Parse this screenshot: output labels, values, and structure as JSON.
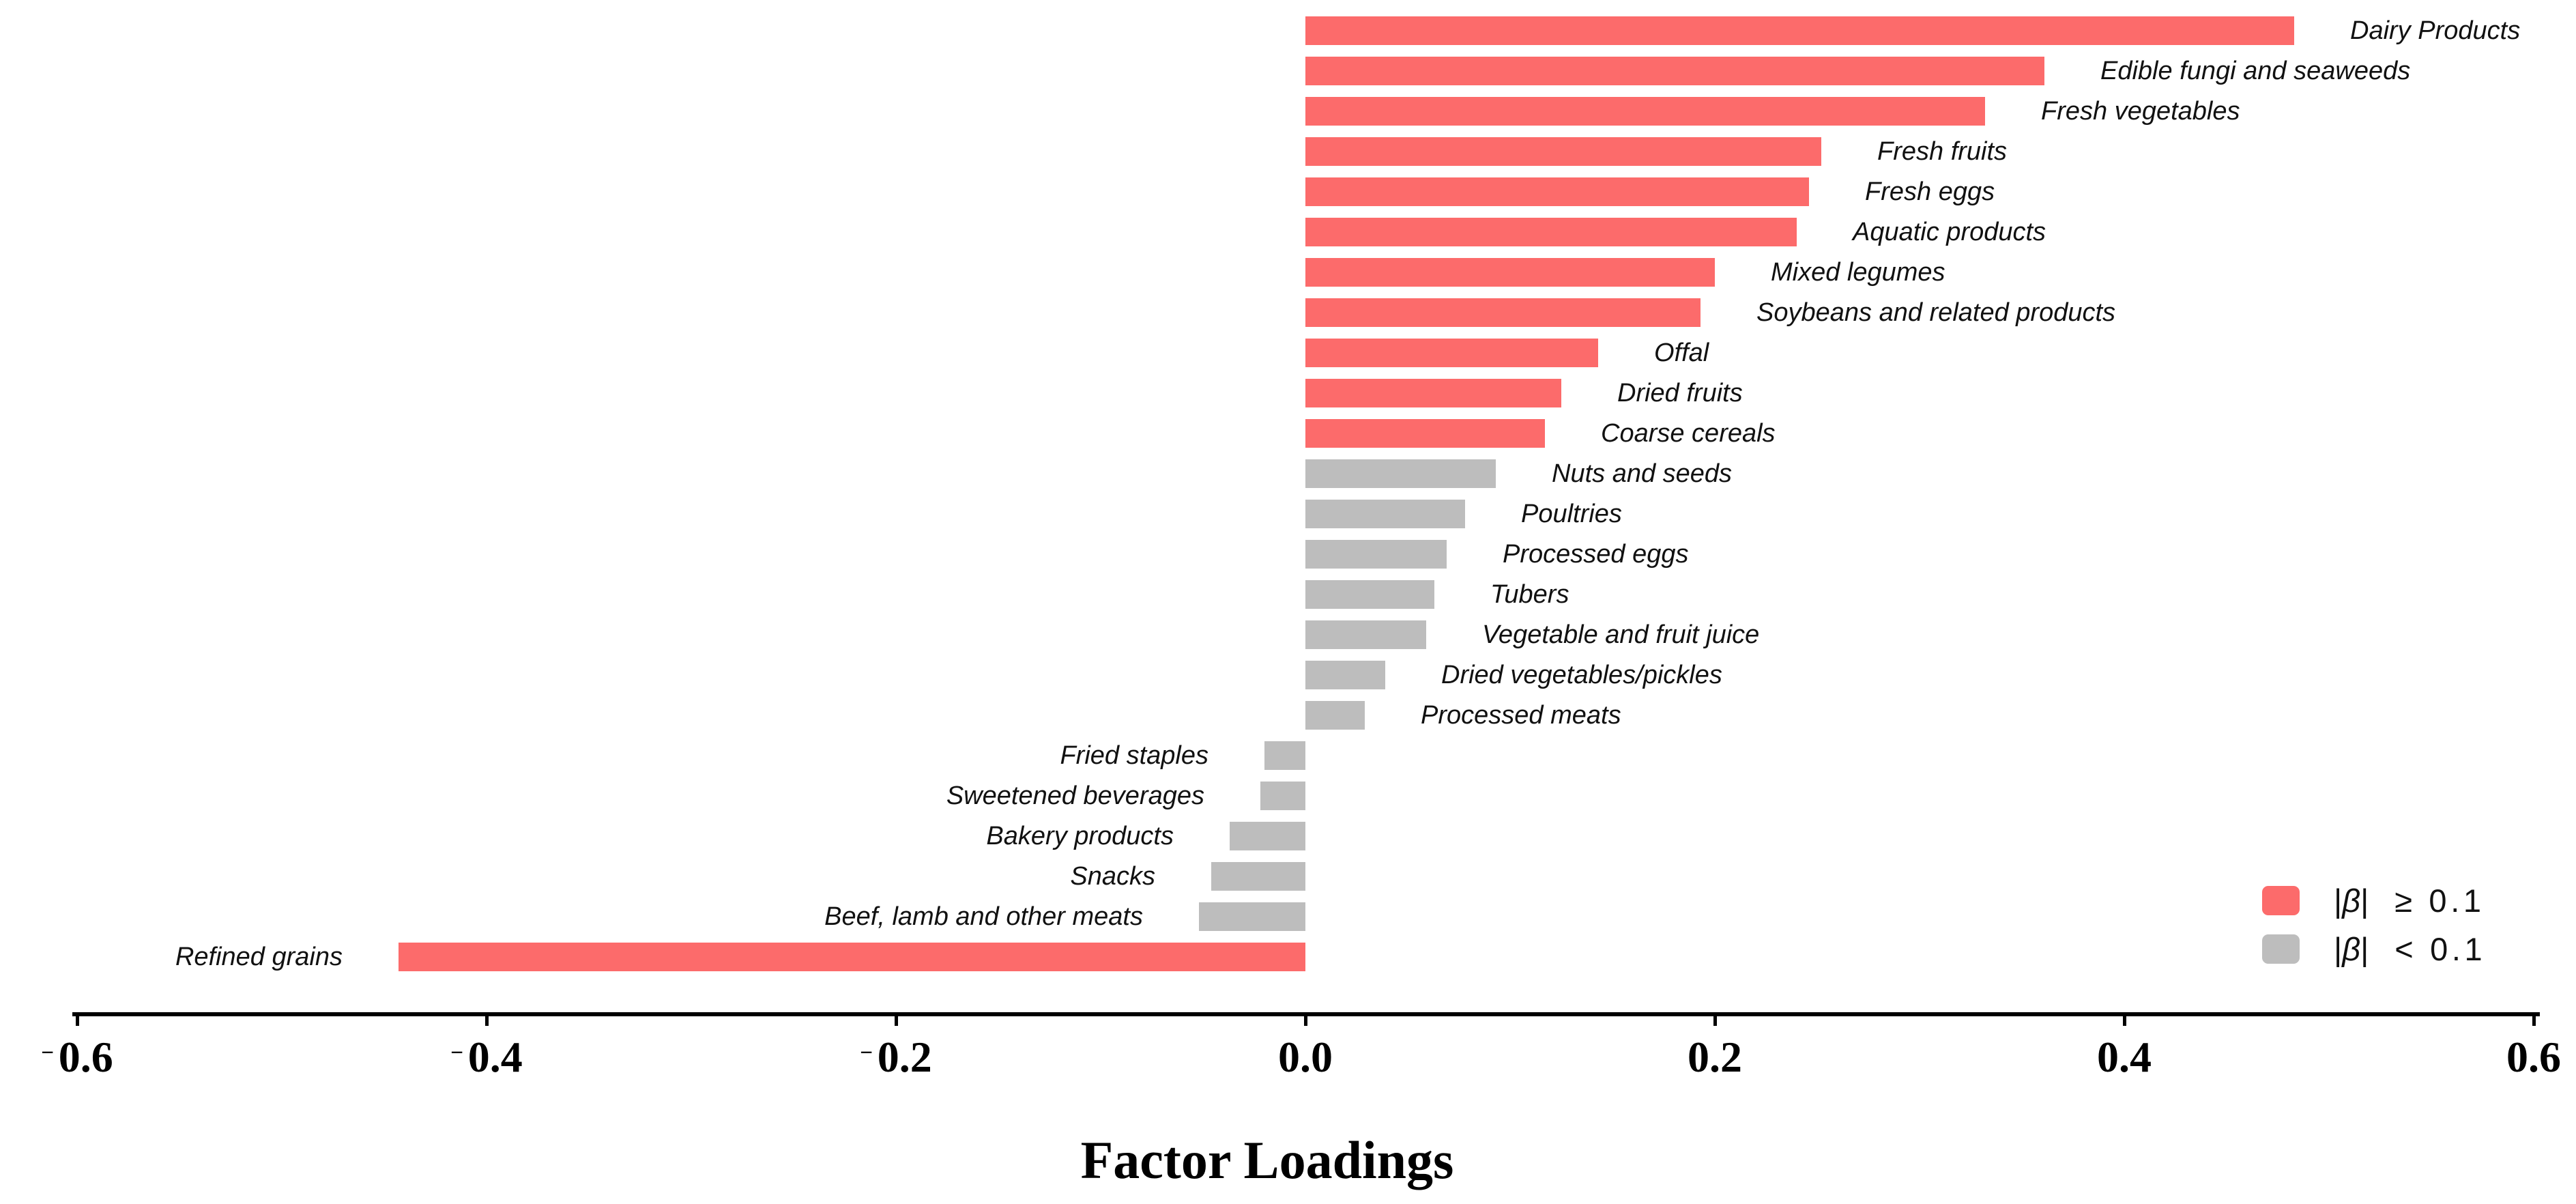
{
  "chart_data": {
    "type": "bar",
    "orientation": "horizontal",
    "title": "",
    "xlabel": "Factor Loadings",
    "ylabel": "",
    "xlim": [
      -0.6,
      0.6
    ],
    "grid": false,
    "legend_position": "bottom-right",
    "threshold": 0.1,
    "colors": {
      "above_threshold": "#FC6B6B",
      "below_threshold": "#BDBDBD",
      "axis": "#000000",
      "text": "#111111"
    },
    "x_ticks": [
      {
        "value": -0.6,
        "label": "−0.6"
      },
      {
        "value": -0.4,
        "label": "−0.4"
      },
      {
        "value": -0.2,
        "label": "−0.2"
      },
      {
        "value": 0.0,
        "label": "0.0"
      },
      {
        "value": 0.2,
        "label": "0.2"
      },
      {
        "value": 0.4,
        "label": "0.4"
      },
      {
        "value": 0.6,
        "label": "0.6"
      }
    ],
    "categories": [
      "Dairy Products",
      "Edible fungi and seaweeds",
      "Fresh vegetables",
      "Fresh fruits",
      "Fresh eggs",
      "Aquatic products",
      "Mixed legumes",
      "Soybeans and related products",
      "Offal",
      "Dried fruits",
      "Coarse cereals",
      "Nuts and seeds",
      "Poultries",
      "Processed eggs",
      "Tubers",
      "Vegetable and fruit juice",
      "Dried vegetables/pickles",
      "Processed meats",
      "Fried staples",
      "Sweetened beverages",
      "Bakery products",
      "Snacks",
      "Beef, lamb and other meats",
      "Refined grains"
    ],
    "values": [
      0.483,
      0.361,
      0.332,
      0.252,
      0.246,
      0.24,
      0.2,
      0.193,
      0.143,
      0.125,
      0.117,
      0.093,
      0.078,
      0.069,
      0.063,
      0.059,
      0.039,
      0.029,
      -0.02,
      -0.022,
      -0.037,
      -0.046,
      -0.052,
      -0.443
    ],
    "legend": [
      {
        "symbol": "|β|",
        "condition": "≥ 0.1",
        "color": "#FC6B6B"
      },
      {
        "symbol": "|β|",
        "condition": "< 0.1",
        "color": "#BDBDBD"
      }
    ]
  }
}
